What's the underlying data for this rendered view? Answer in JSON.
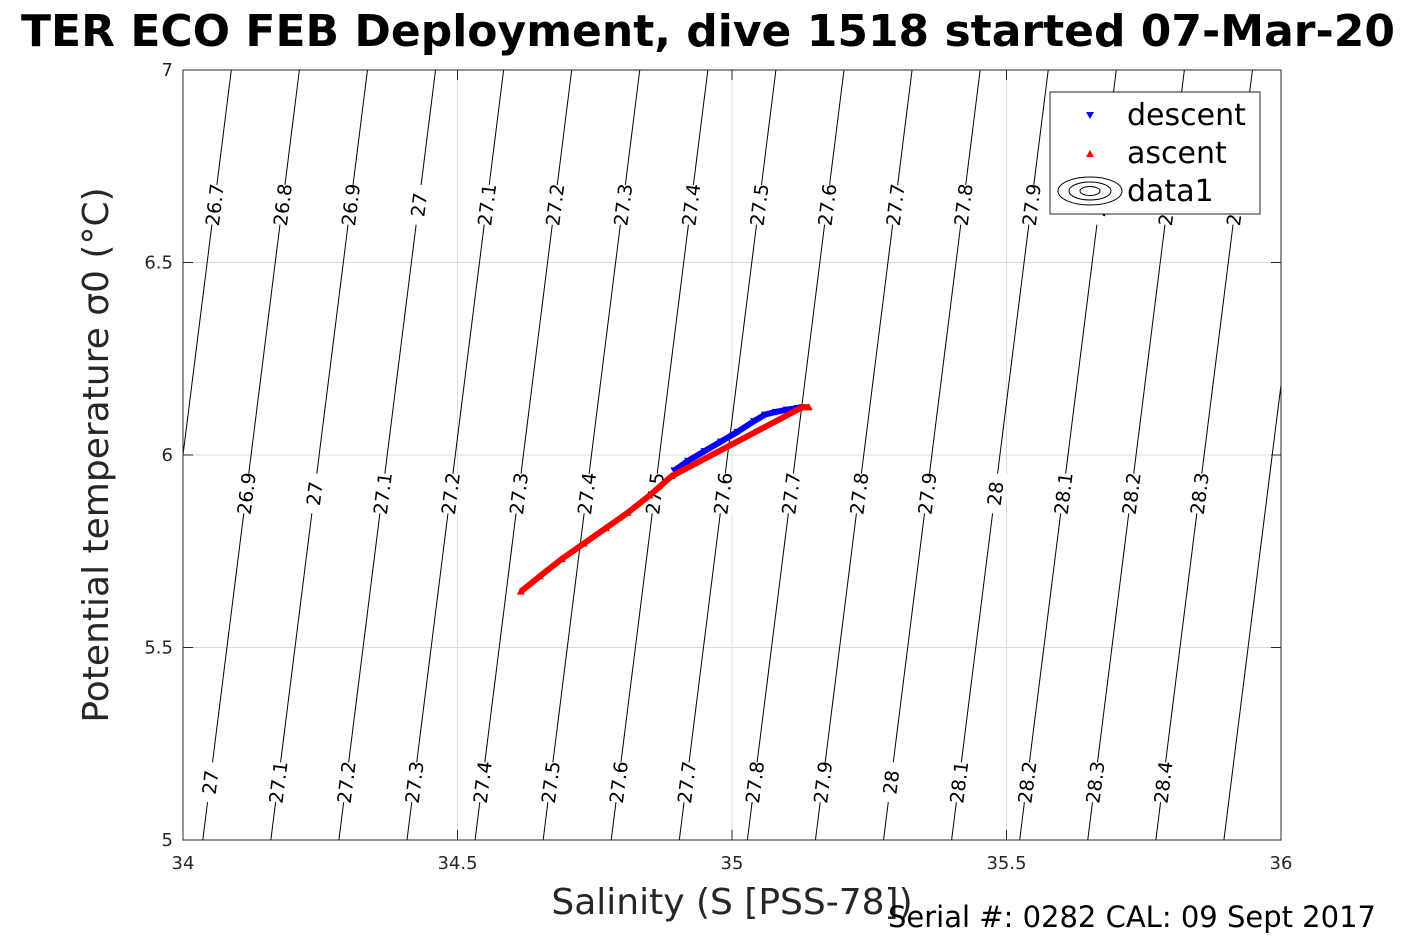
{
  "chart_data": {
    "type": "scatter",
    "title": "TER ECO FEB Deployment, dive 1518 started 07-Mar-20",
    "xlabel": "Salinity (S [PSS-78])",
    "ylabel": "Potential temperature σ0 (°C)",
    "xlim": [
      34,
      36
    ],
    "ylim": [
      5,
      7
    ],
    "xticks": [
      34,
      34.5,
      35,
      35.5,
      36
    ],
    "xtick_labels": [
      "34",
      "34.5",
      "35",
      "35.5",
      "36"
    ],
    "yticks": [
      5,
      5.5,
      6,
      6.5,
      7
    ],
    "ytick_labels": [
      "5",
      "5.5",
      "6",
      "6.5",
      "7"
    ],
    "grid": true,
    "legend_placement": "top-right",
    "series": [
      {
        "name": "descent",
        "marker": "triangle-down",
        "color": "#0000ff",
        "x": [
          34.895,
          34.92,
          34.95,
          34.98,
          35.01,
          35.04,
          35.06,
          35.08,
          35.1,
          35.12,
          35.128
        ],
        "y": [
          5.96,
          5.985,
          6.01,
          6.035,
          6.06,
          6.088,
          6.105,
          6.112,
          6.118,
          6.122,
          6.124
        ]
      },
      {
        "name": "ascent",
        "marker": "triangle-up",
        "color": "#ff0000",
        "x": [
          34.615,
          34.65,
          34.69,
          34.73,
          34.77,
          34.81,
          34.85,
          34.89,
          35.128,
          35.14
        ],
        "y": [
          5.645,
          5.685,
          5.73,
          5.77,
          5.81,
          5.85,
          5.895,
          5.945,
          6.124,
          6.124
        ]
      },
      {
        "name": "data1",
        "type": "contour",
        "color": "#000000",
        "levels": [
          {
            "label": "26.7",
            "x_at_t7": 34.088
          },
          {
            "label": "26.8",
            "x_at_t7": 34.212
          },
          {
            "label": "26.9",
            "x_at_t7": 34.336
          },
          {
            "label": "27",
            "x_at_t7": 34.46
          },
          {
            "label": "27.1",
            "x_at_t7": 34.584
          },
          {
            "label": "27.2",
            "x_at_t7": 34.708
          },
          {
            "label": "27.3",
            "x_at_t7": 34.832
          },
          {
            "label": "27.4",
            "x_at_t7": 34.956
          },
          {
            "label": "27.5",
            "x_at_t7": 35.08
          },
          {
            "label": "27.6",
            "x_at_t7": 35.204
          },
          {
            "label": "27.7",
            "x_at_t7": 35.328
          },
          {
            "label": "27.8",
            "x_at_t7": 35.452
          },
          {
            "label": "27.9",
            "x_at_t7": 35.576
          },
          {
            "label": "28",
            "x_at_t7": 35.7
          },
          {
            "label": "28.1",
            "x_at_t7": 35.824
          },
          {
            "label": "28.2",
            "x_at_t7": 35.948
          },
          {
            "label": "28.3",
            "x_at_t7": 36.072
          },
          {
            "label": "28.4",
            "x_at_t7": 36.196
          }
        ],
        "slope_ds_per_dt": 0.088,
        "labels_at_t": [
          6.65,
          5.9,
          5.15
        ]
      }
    ],
    "legend": [
      "descent",
      "ascent",
      "data1"
    ]
  },
  "footnote": "Serial #: 0282  CAL: 09 Sept 2017"
}
